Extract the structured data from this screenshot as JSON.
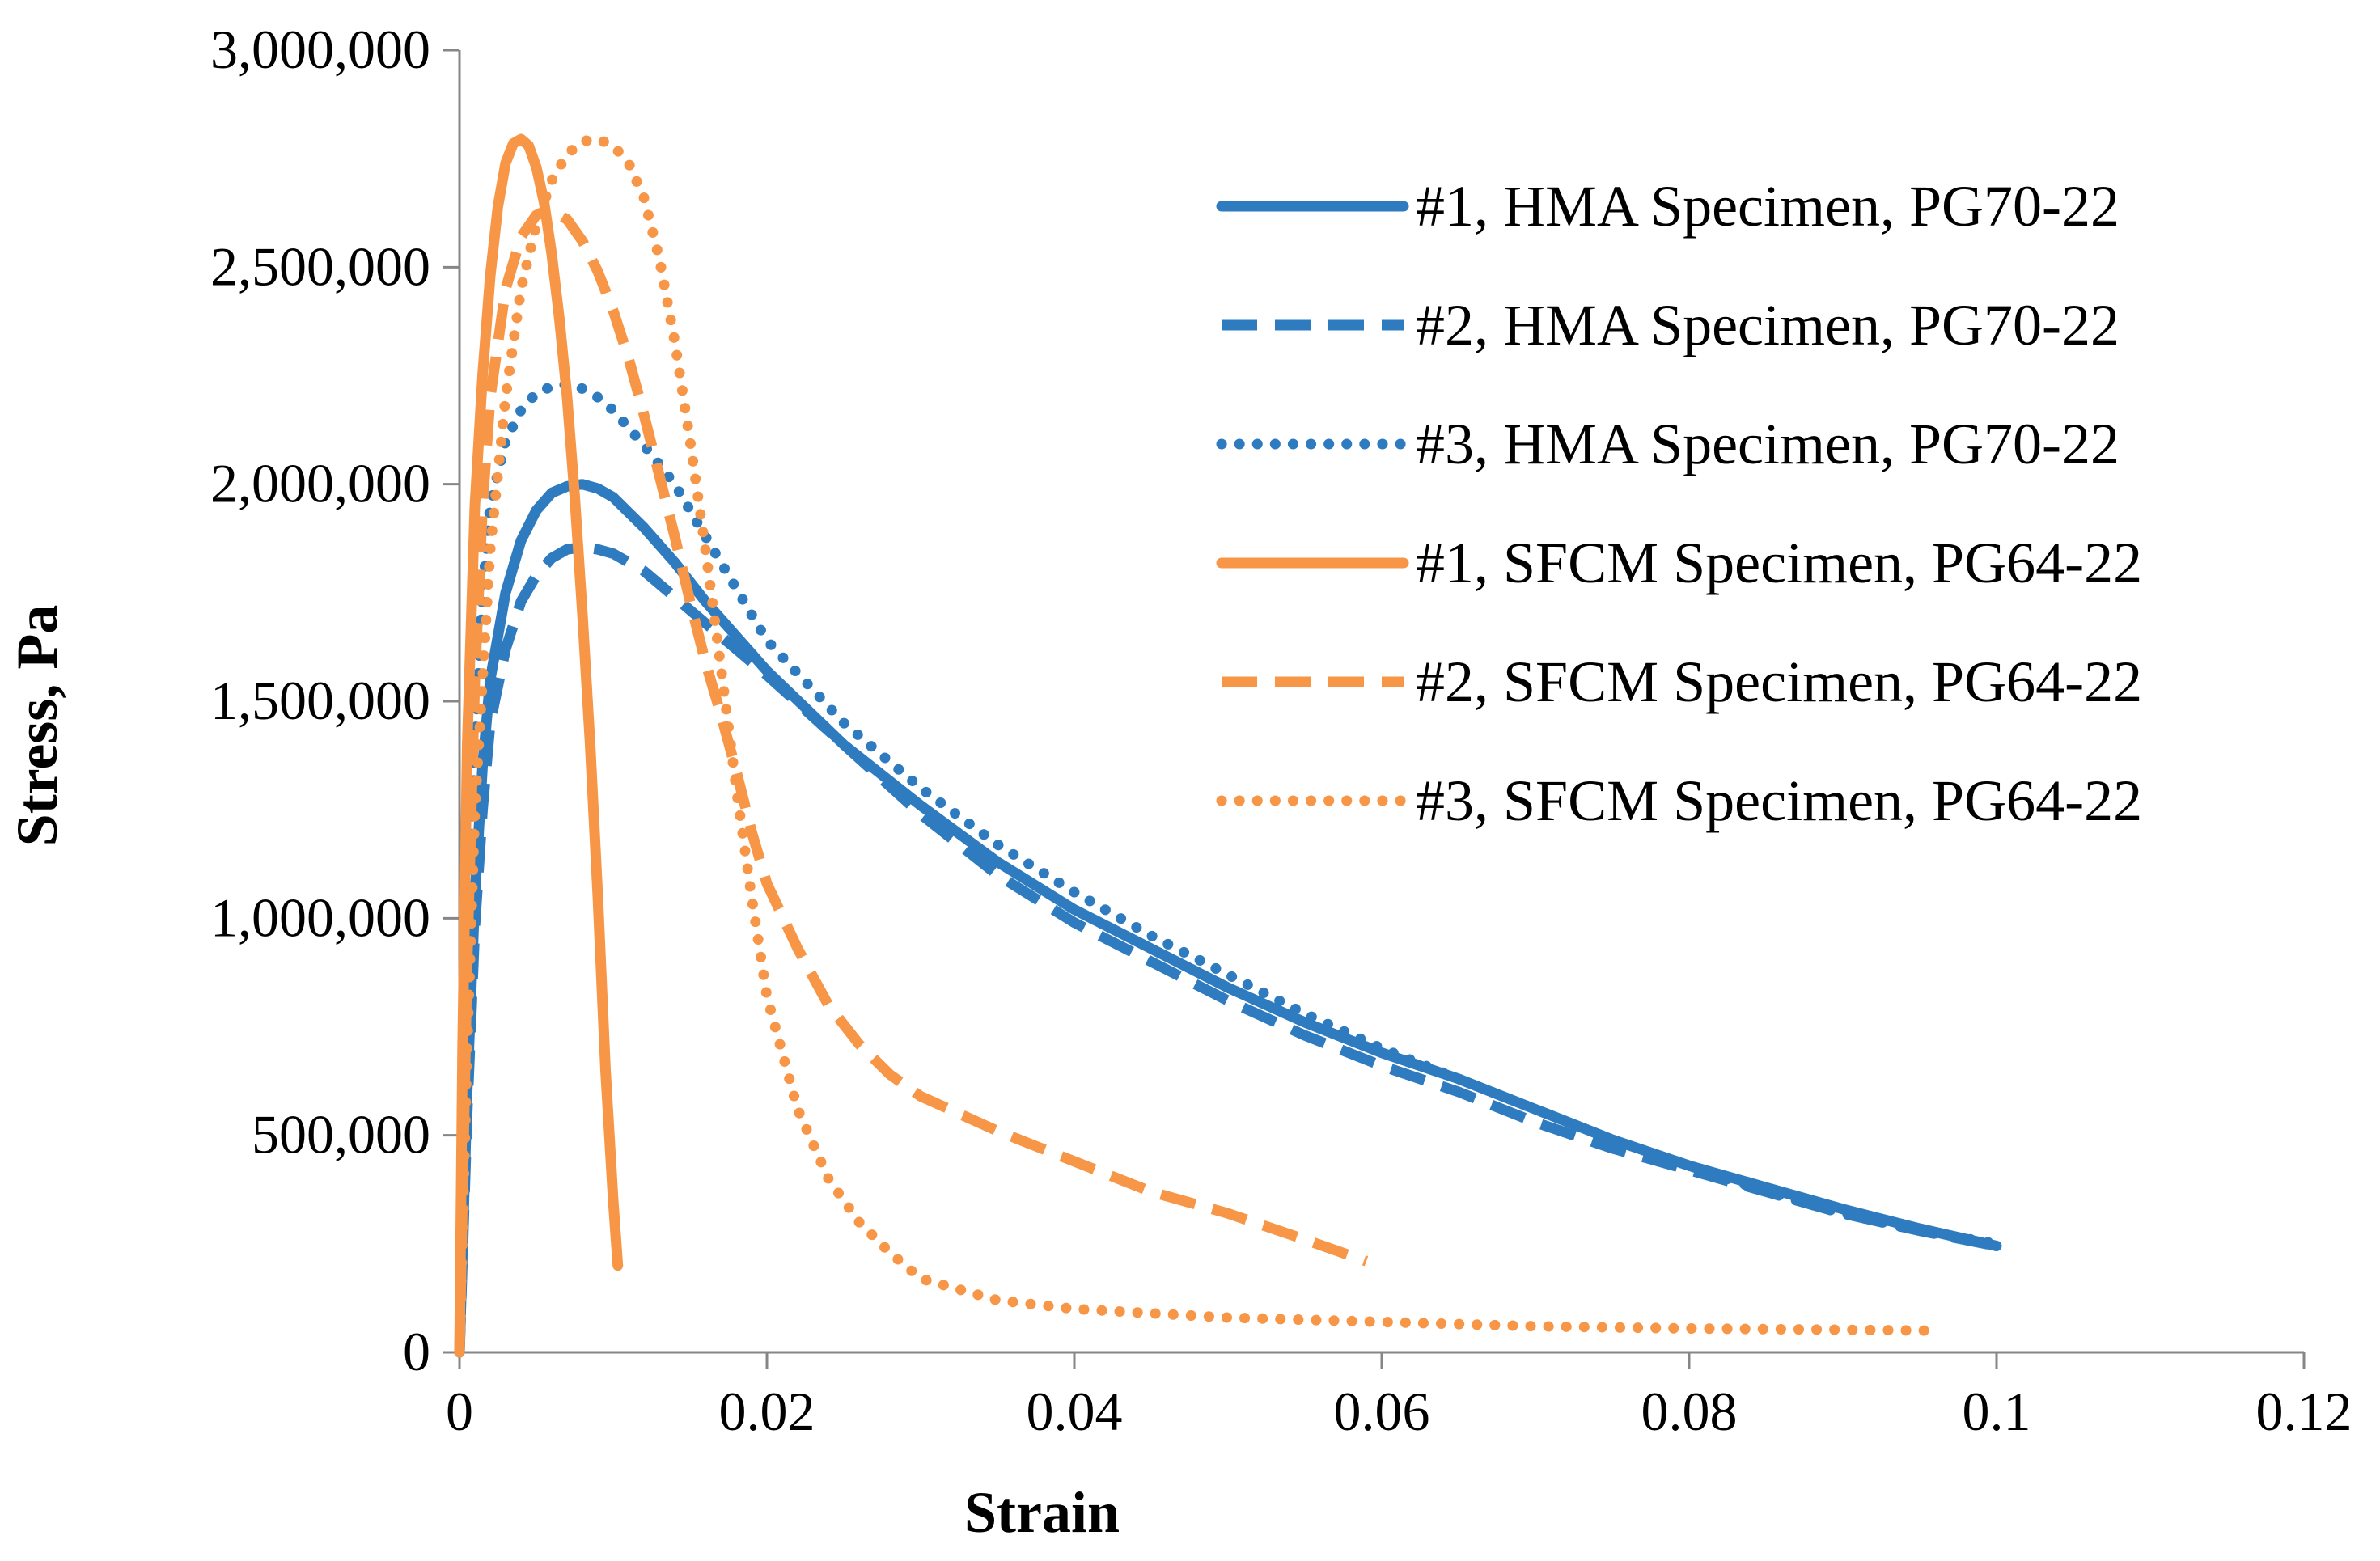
{
  "chart_data": {
    "type": "line",
    "title": "",
    "xlabel": "Strain",
    "ylabel": "Stress, Pa",
    "xlim": [
      0,
      0.12
    ],
    "ylim": [
      0,
      3000000
    ],
    "grid": false,
    "legend_position": "top-right",
    "x_ticks": [
      {
        "value": 0,
        "label": "0"
      },
      {
        "value": 0.02,
        "label": "0.02"
      },
      {
        "value": 0.04,
        "label": "0.04"
      },
      {
        "value": 0.06,
        "label": "0.06"
      },
      {
        "value": 0.08,
        "label": "0.08"
      },
      {
        "value": 0.1,
        "label": "0.1"
      },
      {
        "value": 0.12,
        "label": "0.12"
      }
    ],
    "y_ticks": [
      {
        "value": 0,
        "label": "0"
      },
      {
        "value": 500000,
        "label": "500,000"
      },
      {
        "value": 1000000,
        "label": "1,000,000"
      },
      {
        "value": 1500000,
        "label": "1,500,000"
      },
      {
        "value": 2000000,
        "label": "2,000,000"
      },
      {
        "value": 2500000,
        "label": "2,500,000"
      },
      {
        "value": 3000000,
        "label": "3,000,000"
      }
    ],
    "series": [
      {
        "name": "#1, HMA Specimen, PG70-22",
        "color": "#2E7BBF",
        "style": "solid",
        "x": [
          0,
          0.0005,
          0.001,
          0.0015,
          0.002,
          0.003,
          0.004,
          0.005,
          0.006,
          0.007,
          0.008,
          0.009,
          0.01,
          0.012,
          0.014,
          0.016,
          0.018,
          0.02,
          0.025,
          0.03,
          0.035,
          0.04,
          0.045,
          0.05,
          0.055,
          0.06,
          0.065,
          0.07,
          0.075,
          0.08,
          0.085,
          0.09,
          0.095,
          0.1
        ],
        "values": [
          0,
          600000,
          1050000,
          1350000,
          1550000,
          1750000,
          1870000,
          1940000,
          1980000,
          1995000,
          2000000,
          1990000,
          1970000,
          1900000,
          1820000,
          1730000,
          1650000,
          1570000,
          1400000,
          1260000,
          1130000,
          1020000,
          930000,
          840000,
          760000,
          690000,
          630000,
          560000,
          490000,
          430000,
          380000,
          330000,
          285000,
          245000
        ]
      },
      {
        "name": "#2, HMA Specimen, PG70-22",
        "color": "#2E7BBF",
        "style": "dashed",
        "x": [
          0,
          0.0005,
          0.001,
          0.0015,
          0.002,
          0.003,
          0.004,
          0.005,
          0.006,
          0.007,
          0.008,
          0.009,
          0.01,
          0.012,
          0.014,
          0.016,
          0.018,
          0.02,
          0.025,
          0.03,
          0.035,
          0.04,
          0.045,
          0.05,
          0.055,
          0.06,
          0.065,
          0.07,
          0.075,
          0.08,
          0.085,
          0.09,
          0.095,
          0.1
        ],
        "values": [
          0,
          550000,
          980000,
          1250000,
          1450000,
          1620000,
          1730000,
          1790000,
          1830000,
          1850000,
          1855000,
          1850000,
          1840000,
          1800000,
          1740000,
          1680000,
          1620000,
          1560000,
          1400000,
          1240000,
          1100000,
          990000,
          900000,
          810000,
          730000,
          660000,
          600000,
          530000,
          470000,
          420000,
          370000,
          320000,
          280000,
          245000
        ]
      },
      {
        "name": "#3, HMA Specimen, PG70-22",
        "color": "#2E7BBF",
        "style": "dotted",
        "x": [
          0,
          0.0005,
          0.001,
          0.0015,
          0.002,
          0.003,
          0.004,
          0.005,
          0.006,
          0.007,
          0.008,
          0.009,
          0.01,
          0.012,
          0.014,
          0.016,
          0.018,
          0.02,
          0.025,
          0.03,
          0.035,
          0.04,
          0.045,
          0.05,
          0.055,
          0.06,
          0.065,
          0.07,
          0.075,
          0.08,
          0.085,
          0.09,
          0.095,
          0.1
        ],
        "values": [
          0,
          800000,
          1400000,
          1750000,
          1950000,
          2100000,
          2170000,
          2210000,
          2225000,
          2230000,
          2220000,
          2200000,
          2170000,
          2090000,
          2000000,
          1880000,
          1760000,
          1640000,
          1450000,
          1300000,
          1170000,
          1060000,
          960000,
          870000,
          780000,
          700000,
          630000,
          560000,
          490000,
          430000,
          370000,
          320000,
          280000,
          250000
        ]
      },
      {
        "name": "#1, SFCM Specimen, PG64-22",
        "color": "#F79646",
        "style": "solid",
        "x": [
          0,
          0.0002,
          0.0005,
          0.001,
          0.0015,
          0.002,
          0.0025,
          0.003,
          0.0035,
          0.004,
          0.0045,
          0.005,
          0.0055,
          0.006,
          0.0065,
          0.007,
          0.0075,
          0.008,
          0.0085,
          0.009,
          0.0095,
          0.01,
          0.0102,
          0.0103
        ],
        "values": [
          0,
          700000,
          1400000,
          1950000,
          2250000,
          2480000,
          2640000,
          2740000,
          2785000,
          2795000,
          2780000,
          2730000,
          2650000,
          2530000,
          2380000,
          2200000,
          1970000,
          1700000,
          1400000,
          1050000,
          650000,
          350000,
          250000,
          200000
        ]
      },
      {
        "name": "#2, SFCM Specimen, PG64-22",
        "color": "#F79646",
        "style": "dashed",
        "x": [
          0,
          0.0005,
          0.001,
          0.0015,
          0.002,
          0.003,
          0.004,
          0.005,
          0.006,
          0.007,
          0.008,
          0.009,
          0.01,
          0.011,
          0.012,
          0.013,
          0.014,
          0.015,
          0.016,
          0.017,
          0.018,
          0.019,
          0.02,
          0.022,
          0.024,
          0.026,
          0.028,
          0.03,
          0.035,
          0.04,
          0.045,
          0.05,
          0.055,
          0.059
        ],
        "values": [
          0,
          900000,
          1550000,
          1950000,
          2200000,
          2450000,
          2570000,
          2620000,
          2630000,
          2610000,
          2560000,
          2490000,
          2400000,
          2290000,
          2160000,
          2020000,
          1880000,
          1730000,
          1590000,
          1470000,
          1340000,
          1200000,
          1080000,
          930000,
          800000,
          710000,
          640000,
          590000,
          510000,
          440000,
          370000,
          320000,
          260000,
          210000
        ]
      },
      {
        "name": "#3, SFCM Specimen, PG64-22",
        "color": "#F79646",
        "style": "dotted",
        "x": [
          0,
          0.0005,
          0.001,
          0.002,
          0.003,
          0.004,
          0.005,
          0.006,
          0.007,
          0.008,
          0.009,
          0.01,
          0.011,
          0.012,
          0.013,
          0.014,
          0.015,
          0.016,
          0.017,
          0.018,
          0.019,
          0.02,
          0.022,
          0.024,
          0.026,
          0.028,
          0.03,
          0.035,
          0.04,
          0.05,
          0.06,
          0.07,
          0.08,
          0.09,
          0.096
        ],
        "values": [
          0,
          700000,
          1250000,
          1850000,
          2200000,
          2450000,
          2600000,
          2700000,
          2760000,
          2790000,
          2795000,
          2780000,
          2740000,
          2660000,
          2520000,
          2330000,
          2100000,
          1850000,
          1580000,
          1300000,
          1050000,
          820000,
          560000,
          400000,
          300000,
          230000,
          170000,
          120000,
          100000,
          80000,
          70000,
          60000,
          55000,
          52000,
          50000
        ]
      }
    ]
  }
}
